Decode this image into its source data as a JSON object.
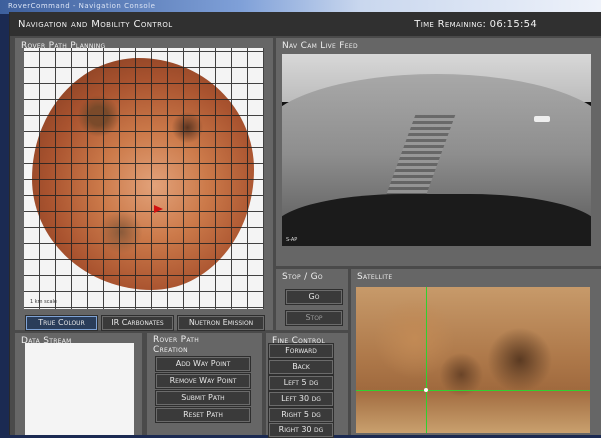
{
  "window": {
    "desktop_title": "RoverCommand - Navigation Console"
  },
  "header": {
    "title": "Navigation and Mobility Control",
    "time_remaining": "Time Remaining: 06:15:54"
  },
  "path_planning": {
    "title": "Rover Path Planning",
    "scale_label": "1 km scale",
    "buttons": {
      "true_colour": "True Colour",
      "ir_carbonates": "IR Carbonates",
      "neutron_emission": "Nuetron Emission"
    },
    "selected_view": "True Colour"
  },
  "navcam": {
    "title": "Nav Cam Live Feed",
    "feed_label": "S-AP"
  },
  "stopgo": {
    "title": "Stop / Go",
    "go_label": "Go",
    "stop_label": "Stop"
  },
  "satellite": {
    "title": "Satellite"
  },
  "data_stream": {
    "title": "Data Stream",
    "content": ""
  },
  "path_creation": {
    "title_line1": "Rover Path",
    "title_line2": "Creation",
    "add": "Add Way Point",
    "remove": "Remove Way Point",
    "submit": "Submit Path",
    "reset": "Reset Path"
  },
  "fine_control": {
    "title": "Fine Control",
    "forward": "Forward",
    "back": "Back",
    "left5": "Left 5 dg",
    "left30": "Left 30 dg",
    "right5": "Right 5 dg",
    "right30": "Right 30 dg"
  },
  "colors": {
    "accent_selected": "#2a3d5a",
    "crosshair": "#2fd12f",
    "panel": "#666666",
    "header": "#303030"
  }
}
